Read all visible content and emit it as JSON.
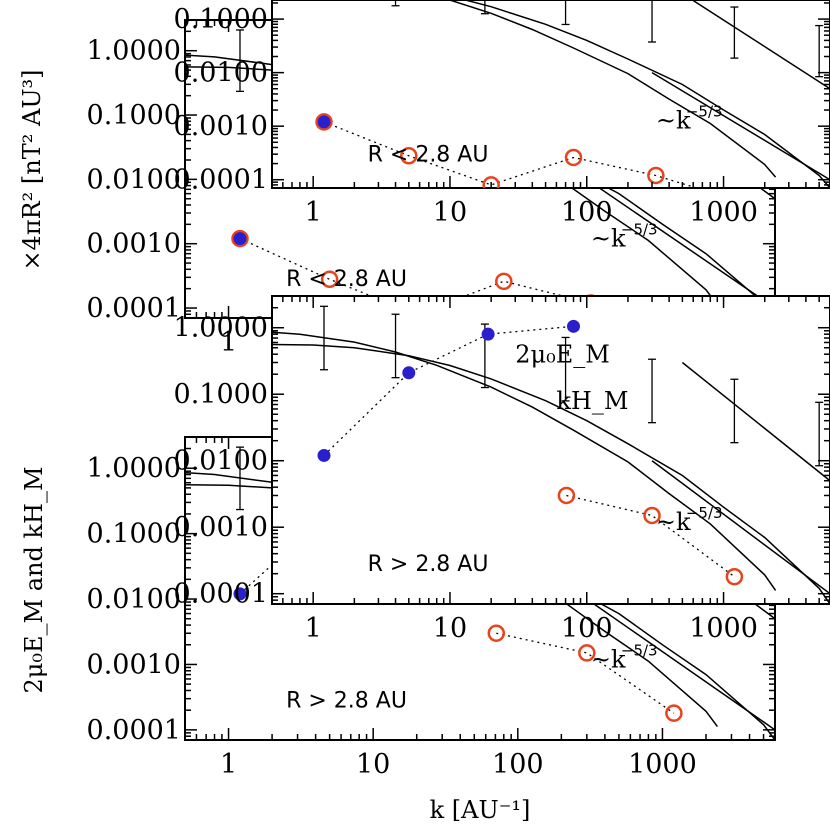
{
  "figure": {
    "xlabel": "k [AU⁻¹]",
    "ylabel_top": "×4πR² [nT² AU³]",
    "ylabel_bottom": "2μ₀E_M and kH_M"
  },
  "chart_data": [
    {
      "type": "scatter",
      "panel": "bottom-main",
      "annotation": "R > 2.8 AU",
      "xlabel": "k [AU⁻¹]",
      "ylabel": "2μ₀E_M and kH_M",
      "xscale": "log",
      "yscale": "log",
      "xlim": [
        0.5,
        6000
      ],
      "ylim": [
        7e-05,
        3
      ],
      "xticks": [
        "1",
        "10",
        "100",
        "1000"
      ],
      "yticks": [
        "0.0001",
        "0.0010",
        "0.0100",
        "0.1000",
        "1.0000"
      ],
      "series": [
        {
          "name": "2μ₀E_M",
          "marker": "open-circle",
          "color": "#e8441c",
          "x": [
            71,
            300,
            1200
          ],
          "y": [
            0.003,
            0.0015,
            0.00018
          ]
        },
        {
          "name": "kH_M",
          "marker": "filled-circle",
          "color": "#2a1fcc",
          "x": [
            1.2,
            5,
            19,
            80
          ],
          "y": [
            0.012,
            0.21,
            0.8,
            1.05
          ]
        }
      ],
      "model_curve": {
        "x": [
          0.5,
          1,
          2,
          5,
          10,
          20,
          50,
          100,
          200,
          500,
          1000,
          2000,
          5000,
          6000
        ],
        "y": [
          0.56,
          0.55,
          0.5,
          0.38,
          0.27,
          0.17,
          0.08,
          0.04,
          0.018,
          0.006,
          0.002,
          0.0007,
          0.00012,
          7e-05
        ]
      },
      "power_law_label": "~k^-5/3",
      "grid": false
    }
  ],
  "labels": {
    "r_top": "R < 2.8 AU",
    "r_bottom": "R > 2.8 AU",
    "e_label": "2μ₀E_M",
    "h_label": "kH_M",
    "slope": "~k",
    "slope_exp": "−5/3"
  }
}
